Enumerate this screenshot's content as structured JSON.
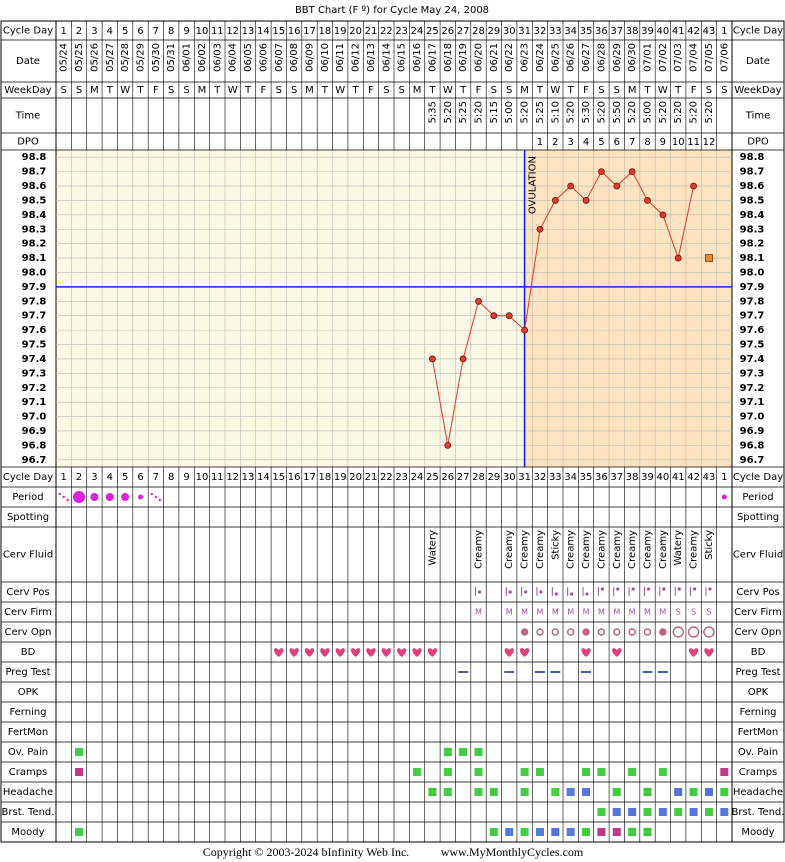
{
  "title": "BBT Chart (F º) for Cycle May 24, 2008",
  "row_labels": {
    "cycle_day": "Cycle Day",
    "date": "Date",
    "weekday": "WeekDay",
    "time": "Time",
    "dpo": "DPO",
    "period": "Period",
    "spotting": "Spotting",
    "cerv_fluid": "Cerv Fluid",
    "cerv_pos": "Cerv Pos",
    "cerv_firm": "Cerv Firm",
    "cerv_opn": "Cerv Opn",
    "bd": "BD",
    "preg_test": "Preg Test",
    "opk": "OPK",
    "ferning": "Ferning",
    "fertmon": "FertMon",
    "ov_pain": "Ov. Pain",
    "cramps": "Cramps",
    "headache": "Headache",
    "brst_tend": "Brst. Tend.",
    "moody": "Moody"
  },
  "cycle_day": [
    1,
    2,
    3,
    4,
    5,
    6,
    7,
    8,
    9,
    10,
    11,
    12,
    13,
    14,
    15,
    16,
    17,
    18,
    19,
    20,
    21,
    22,
    23,
    24,
    25,
    26,
    27,
    28,
    29,
    30,
    31,
    32,
    33,
    34,
    35,
    36,
    37,
    38,
    39,
    40,
    41,
    42,
    43,
    1
  ],
  "date": [
    "05/24",
    "05/25",
    "05/26",
    "05/27",
    "05/28",
    "05/29",
    "05/30",
    "05/31",
    "06/01",
    "06/02",
    "06/03",
    "06/04",
    "06/05",
    "06/06",
    "06/07",
    "06/08",
    "06/09",
    "06/10",
    "06/11",
    "06/12",
    "06/13",
    "06/14",
    "06/15",
    "06/16",
    "06/17",
    "06/18",
    "06/19",
    "06/20",
    "06/21",
    "06/22",
    "06/23",
    "06/24",
    "06/25",
    "06/26",
    "06/27",
    "06/28",
    "06/29",
    "06/30",
    "07/01",
    "07/02",
    "07/03",
    "07/04",
    "07/05",
    "07/06"
  ],
  "weekday": [
    "S",
    "S",
    "M",
    "T",
    "W",
    "T",
    "F",
    "S",
    "S",
    "M",
    "T",
    "W",
    "T",
    "F",
    "S",
    "S",
    "M",
    "T",
    "W",
    "T",
    "F",
    "S",
    "S",
    "M",
    "T",
    "W",
    "T",
    "F",
    "S",
    "S",
    "M",
    "T",
    "W",
    "T",
    "F",
    "S",
    "S",
    "M",
    "T",
    "W",
    "T",
    "F",
    "S",
    "S"
  ],
  "time": [
    null,
    null,
    null,
    null,
    null,
    null,
    null,
    null,
    null,
    null,
    null,
    null,
    null,
    null,
    null,
    null,
    null,
    null,
    null,
    null,
    null,
    null,
    null,
    null,
    "5:35",
    "5:20",
    "5:25",
    "5:20",
    "5:15",
    "5:00",
    "5:20",
    "5:25",
    "5:10",
    "5:20",
    "5:30",
    "5:20",
    "5:50",
    "5:20",
    "5:00",
    "5:20",
    "5:20",
    "5:20",
    "5:20",
    null
  ],
  "dpo": [
    null,
    null,
    null,
    null,
    null,
    null,
    null,
    null,
    null,
    null,
    null,
    null,
    null,
    null,
    null,
    null,
    null,
    null,
    null,
    null,
    null,
    null,
    null,
    null,
    null,
    null,
    null,
    null,
    null,
    null,
    null,
    1,
    2,
    3,
    4,
    5,
    6,
    7,
    8,
    9,
    10,
    11,
    12,
    null
  ],
  "chart_data": {
    "type": "line",
    "ylim": [
      96.65,
      98.85
    ],
    "yticks": [
      96.7,
      96.8,
      96.9,
      {
        "value": 97,
        "label": "97.0"
      },
      97.1,
      97.2,
      97.3,
      97.4,
      97.5,
      97.6,
      97.7,
      97.8,
      97.9,
      {
        "value": 98,
        "label": "98.0"
      },
      98.1,
      98.2,
      98.3,
      98.4,
      98.5,
      98.6,
      98.7,
      98.8
    ],
    "grid": true,
    "coverline": 97.9,
    "ovulation_day": 31,
    "ovulation_label": "OVULATION",
    "series": [
      {
        "color": "#e03a2a",
        "marker": "circle",
        "values": [
          null,
          null,
          null,
          null,
          null,
          null,
          null,
          null,
          null,
          null,
          null,
          null,
          null,
          null,
          null,
          null,
          null,
          null,
          null,
          null,
          null,
          null,
          null,
          null,
          97.4,
          96.8,
          97.4,
          97.8,
          97.7,
          97.7,
          97.6,
          98.3,
          98.5,
          98.6,
          98.5,
          98.7,
          98.6,
          98.7,
          98.5,
          98.4,
          98.1,
          98.6,
          null,
          null
        ]
      },
      {
        "color": "#f0882a",
        "marker": "square",
        "values": [
          null,
          null,
          null,
          null,
          null,
          null,
          null,
          null,
          null,
          null,
          null,
          null,
          null,
          null,
          null,
          null,
          null,
          null,
          null,
          null,
          null,
          null,
          null,
          null,
          null,
          null,
          null,
          null,
          null,
          null,
          null,
          null,
          null,
          null,
          null,
          null,
          null,
          null,
          null,
          null,
          null,
          null,
          98.1,
          null
        ]
      }
    ]
  },
  "cerv_fluid": [
    null,
    null,
    null,
    null,
    null,
    null,
    null,
    null,
    null,
    null,
    null,
    null,
    null,
    null,
    null,
    null,
    null,
    null,
    null,
    null,
    null,
    null,
    null,
    null,
    "Watery",
    null,
    null,
    "Creamy",
    null,
    "Creamy",
    "Creamy",
    "Creamy",
    "Sticky",
    "Creamy",
    "Creamy",
    "Creamy",
    "Creamy",
    "Creamy",
    "Creamy",
    "Creamy",
    "Watery",
    "Creamy",
    "Sticky",
    null
  ],
  "cerv_firm": [
    null,
    null,
    null,
    null,
    null,
    null,
    null,
    null,
    null,
    null,
    null,
    null,
    null,
    null,
    null,
    null,
    null,
    null,
    null,
    null,
    null,
    null,
    null,
    null,
    null,
    null,
    null,
    "M",
    null,
    "M",
    "M",
    "M",
    "M",
    "M",
    "M",
    "M",
    "M",
    "M",
    "M",
    "M",
    "S",
    "S",
    "S",
    null
  ],
  "footer": {
    "copyright": "Copyright © 2003-2024 bInfinity Web Inc.",
    "site": "www.MyMonthlyCycles.com"
  }
}
